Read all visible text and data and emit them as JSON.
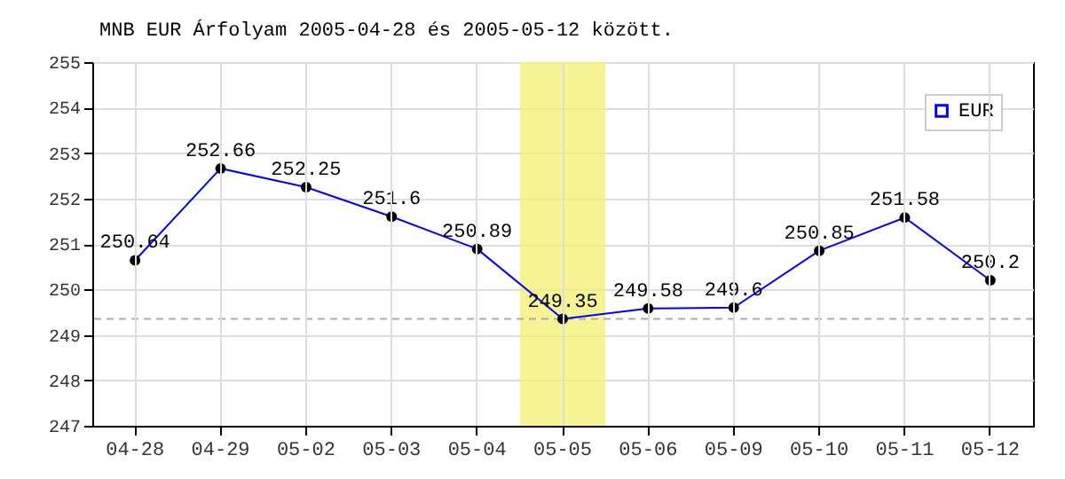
{
  "chart_data": {
    "type": "line",
    "title": "MNB EUR Árfolyam 2005-04-28 és 2005-05-12 között.",
    "categories": [
      "04-28",
      "04-29",
      "05-02",
      "05-03",
      "05-04",
      "05-05",
      "05-06",
      "05-09",
      "05-10",
      "05-11",
      "05-12"
    ],
    "series": [
      {
        "name": "EUR",
        "color": "#0000ff",
        "values": [
          250.64,
          252.66,
          252.25,
          251.6,
          250.89,
          249.35,
          249.58,
          249.6,
          250.85,
          251.58,
          250.2
        ]
      }
    ],
    "ylim": [
      247,
      255
    ],
    "yticks": [
      247,
      248,
      249,
      250,
      251,
      252,
      253,
      254,
      255
    ],
    "grid": true,
    "legend": "top right",
    "marker": "circle",
    "line_style": "solid",
    "data_labels": true,
    "ref_lines": [
      {
        "axis": "y",
        "value": 249.35,
        "color": "#aaaaaa",
        "line_style": "dashed"
      }
    ],
    "bands": [
      {
        "axis": "x",
        "from": "05-05",
        "to": "05-05",
        "color": "#f4f07a"
      }
    ]
  }
}
